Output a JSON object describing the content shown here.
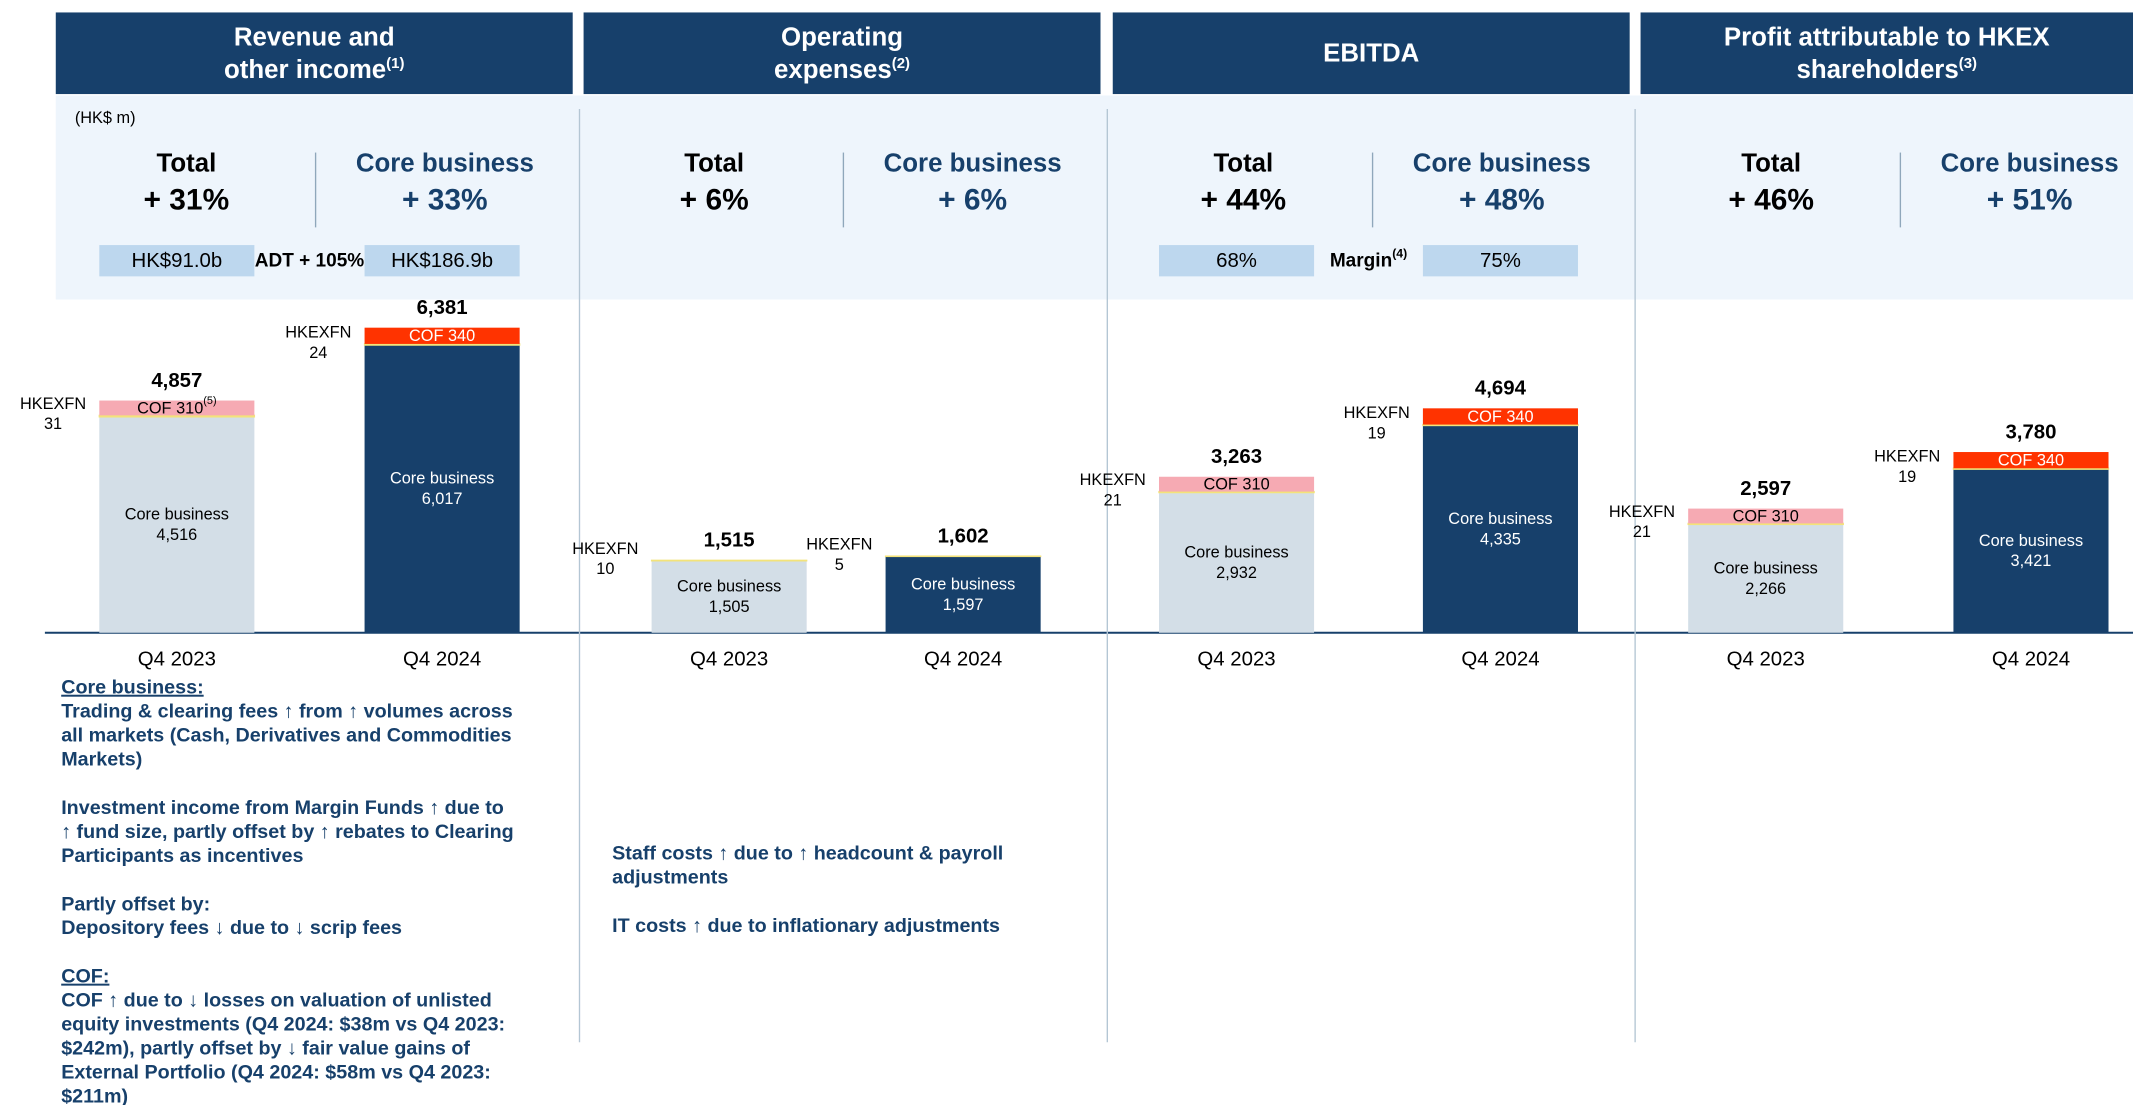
{
  "unit": "(HK$ m)",
  "panels": [
    {
      "header": [
        "Revenue and",
        "other income"
      ],
      "header_note": "(1)",
      "metrics": [
        {
          "label": "Total",
          "value": "+ 31%"
        },
        {
          "label": "Core business",
          "value": "+ 33%"
        }
      ],
      "comparison": {
        "left": "HK$91.0b",
        "middle": "ADT + 105%",
        "right": "HK$186.9b"
      },
      "chart_data": {
        "type": "bar",
        "stacked": true,
        "categories": [
          "Q4 2023",
          "Q4 2024"
        ],
        "ylim": [
          0,
          6800
        ],
        "series": [
          {
            "name": "Core business",
            "colors": [
              "#d3dee7",
              "#17406b"
            ],
            "values": [
              4516,
              6017
            ],
            "value_labels": [
              "4,516",
              "6,017"
            ]
          },
          {
            "name": "HKEXFN",
            "colors": [
              "#f3e37a",
              "#f3e37a"
            ],
            "values": [
              31,
              24
            ]
          },
          {
            "name": "COF",
            "colors": [
              "#f6aab3",
              "#ff3300"
            ],
            "values": [
              310,
              340
            ],
            "value_notes": [
              "(5)",
              null
            ]
          }
        ],
        "totals": [
          4857,
          6381
        ],
        "totals_labels": [
          "4,857",
          "6,381"
        ]
      },
      "notes": [
        {
          "heading": "Core business:",
          "lines": [
            "Trading & clearing fees ↑ from ↑ volumes across",
            "all markets (Cash, Derivatives and Commodities",
            "Markets)"
          ]
        },
        {
          "lines": [
            "Investment income from Margin Funds ↑ due to",
            "↑ fund size, partly offset by ↑ rebates to Clearing",
            "Participants as incentives"
          ]
        },
        {
          "lines": [
            "Partly offset by:",
            "Depository fees ↓ due to ↓ scrip fees"
          ]
        },
        {
          "heading": "COF:",
          "lines": [
            "COF ↑ due to ↓ losses on valuation of unlisted",
            "equity investments (Q4 2024: $38m vs Q4 2023:",
            "$242m), partly offset by ↓ fair value gains of",
            "External Portfolio (Q4 2024: $58m vs Q4 2023:",
            "$211m)"
          ]
        }
      ]
    },
    {
      "header": [
        "Operating",
        "expenses"
      ],
      "header_note": "(2)",
      "metrics": [
        {
          "label": "Total",
          "value": "+ 6%"
        },
        {
          "label": "Core business",
          "value": "+ 6%"
        }
      ],
      "chart_data": {
        "type": "bar",
        "stacked": true,
        "categories": [
          "Q4 2023",
          "Q4 2024"
        ],
        "ylim": [
          0,
          6800
        ],
        "series": [
          {
            "name": "Core business",
            "colors": [
              "#d3dee7",
              "#17406b"
            ],
            "values": [
              1505,
              1597
            ],
            "value_labels": [
              "1,505",
              "1,597"
            ]
          },
          {
            "name": "HKEXFN",
            "colors": [
              "#f3e37a",
              "#f3e37a"
            ],
            "values": [
              10,
              5
            ]
          }
        ],
        "totals": [
          1515,
          1602
        ],
        "totals_labels": [
          "1,515",
          "1,602"
        ]
      },
      "notes": [
        {
          "lines": [
            "Staff costs ↑ due to ↑ headcount & payroll",
            "adjustments"
          ]
        },
        {
          "lines": [
            "IT costs ↑ due to inflationary adjustments"
          ]
        }
      ]
    },
    {
      "header": [
        "EBITDA"
      ],
      "metrics": [
        {
          "label": "Total",
          "value": "+ 44%"
        },
        {
          "label": "Core business",
          "value": "+ 48%"
        }
      ],
      "comparison": {
        "left": "68%",
        "middle": "Margin",
        "middle_note": "(4)",
        "right": "75%"
      },
      "chart_data": {
        "type": "bar",
        "stacked": true,
        "categories": [
          "Q4 2023",
          "Q4 2024"
        ],
        "ylim": [
          0,
          6800
        ],
        "series": [
          {
            "name": "Core business",
            "colors": [
              "#d3dee7",
              "#17406b"
            ],
            "values": [
              2932,
              4335
            ],
            "value_labels": [
              "2,932",
              "4,335"
            ]
          },
          {
            "name": "HKEXFN",
            "colors": [
              "#f3e37a",
              "#f3e37a"
            ],
            "values": [
              21,
              19
            ]
          },
          {
            "name": "COF",
            "colors": [
              "#f6aab3",
              "#ff3300"
            ],
            "values": [
              310,
              340
            ]
          }
        ],
        "totals": [
          3263,
          4694
        ],
        "totals_labels": [
          "3,263",
          "4,694"
        ]
      }
    },
    {
      "header": [
        "Profit attributable to HKEX",
        "shareholders"
      ],
      "header_note": "(3)",
      "metrics": [
        {
          "label": "Total",
          "value": "+ 46%"
        },
        {
          "label": "Core business",
          "value": "+ 51%"
        }
      ],
      "chart_data": {
        "type": "bar",
        "stacked": true,
        "categories": [
          "Q4 2023",
          "Q4 2024"
        ],
        "ylim": [
          0,
          6800
        ],
        "series": [
          {
            "name": "Core business",
            "colors": [
              "#d3dee7",
              "#17406b"
            ],
            "values": [
              2266,
              3421
            ],
            "value_labels": [
              "2,266",
              "3,421"
            ]
          },
          {
            "name": "HKEXFN",
            "colors": [
              "#f3e37a",
              "#f3e37a"
            ],
            "values": [
              21,
              19
            ]
          },
          {
            "name": "COF",
            "colors": [
              "#f6aab3",
              "#ff3300"
            ],
            "values": [
              310,
              340
            ]
          }
        ],
        "totals": [
          2597,
          3780
        ],
        "totals_labels": [
          "2,597",
          "3,780"
        ]
      }
    }
  ]
}
